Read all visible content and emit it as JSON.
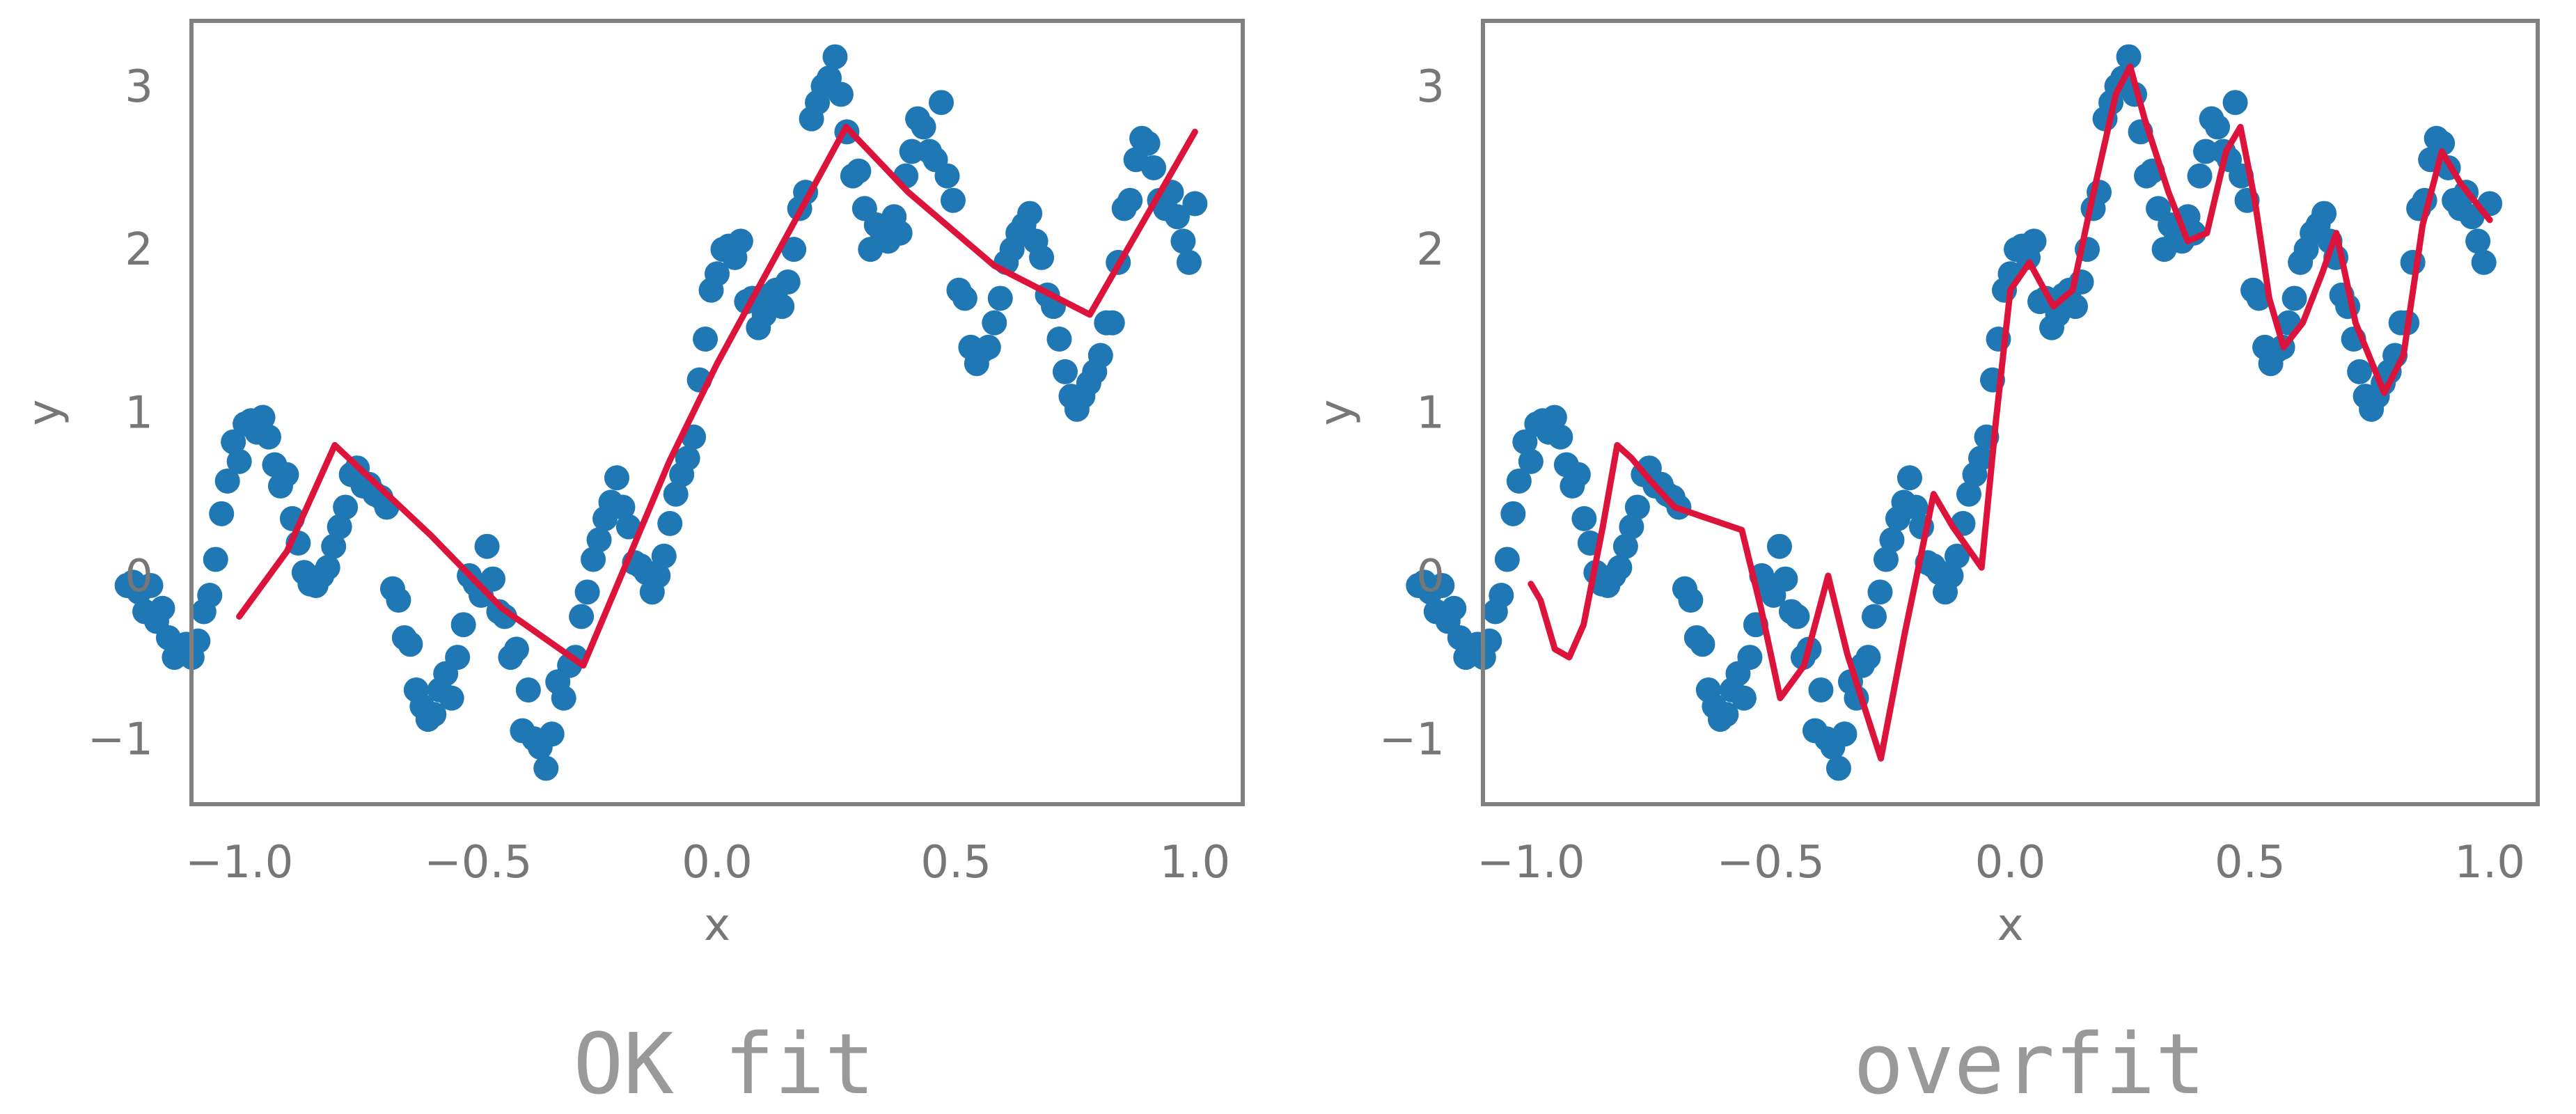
{
  "colors": {
    "points": "#1f77b4",
    "fit_line": "#dc143c",
    "frame": "#808080",
    "text": "#777777",
    "caption": "#999999"
  },
  "chart_data": [
    {
      "type": "scatter",
      "caption": "OK fit",
      "xlabel": "x",
      "ylabel": "y",
      "xlim": [
        -1.1,
        1.1
      ],
      "ylim": [
        -1.4,
        3.4
      ],
      "xticks": [
        -1.0,
        -0.5,
        0.0,
        0.5,
        1.0
      ],
      "xtick_labels": [
        "−1.0",
        "−0.5",
        "0.0",
        "0.5",
        "1.0"
      ],
      "yticks": [
        -1,
        0,
        1,
        2,
        3
      ],
      "ytick_labels": [
        "−1",
        "0",
        "1",
        "2",
        "3"
      ],
      "grid": false,
      "series": [
        {
          "kind": "points",
          "points": [
            [
              -1.0,
              -0.06
            ],
            [
              -0.99,
              -0.04
            ],
            [
              -0.98,
              -0.1
            ],
            [
              -0.97,
              -0.22
            ],
            [
              -0.96,
              -0.06
            ],
            [
              -0.95,
              -0.28
            ],
            [
              -0.94,
              -0.2
            ],
            [
              -0.93,
              -0.38
            ],
            [
              -0.92,
              -0.5
            ],
            [
              -0.91,
              -0.44
            ],
            [
              -0.9,
              -0.42
            ],
            [
              -0.89,
              -0.5
            ],
            [
              -0.88,
              -0.4
            ],
            [
              -0.87,
              -0.22
            ],
            [
              -0.86,
              -0.12
            ],
            [
              -0.85,
              0.1
            ],
            [
              -0.84,
              0.38
            ],
            [
              -0.83,
              0.58
            ],
            [
              -0.82,
              0.82
            ],
            [
              -0.81,
              0.7
            ],
            [
              -0.8,
              0.93
            ],
            [
              -0.79,
              0.95
            ],
            [
              -0.78,
              0.88
            ],
            [
              -0.77,
              0.97
            ],
            [
              -0.76,
              0.85
            ],
            [
              -0.75,
              0.68
            ],
            [
              -0.74,
              0.55
            ],
            [
              -0.73,
              0.62
            ],
            [
              -0.72,
              0.35
            ],
            [
              -0.71,
              0.2
            ],
            [
              -0.7,
              0.02
            ],
            [
              -0.69,
              -0.05
            ],
            [
              -0.68,
              -0.06
            ],
            [
              -0.67,
              0.0
            ],
            [
              -0.66,
              0.05
            ],
            [
              -0.65,
              0.18
            ],
            [
              -0.64,
              0.3
            ],
            [
              -0.63,
              0.42
            ],
            [
              -0.62,
              0.62
            ],
            [
              -0.61,
              0.66
            ],
            [
              -0.6,
              0.55
            ],
            [
              -0.59,
              0.56
            ],
            [
              -0.58,
              0.5
            ],
            [
              -0.57,
              0.48
            ],
            [
              -0.56,
              0.42
            ],
            [
              -0.55,
              -0.08
            ],
            [
              -0.54,
              -0.15
            ],
            [
              -0.53,
              -0.38
            ],
            [
              -0.52,
              -0.42
            ],
            [
              -0.51,
              -0.7
            ],
            [
              -0.5,
              -0.8
            ],
            [
              -0.49,
              -0.88
            ],
            [
              -0.48,
              -0.85
            ],
            [
              -0.47,
              -0.7
            ],
            [
              -0.46,
              -0.6
            ],
            [
              -0.45,
              -0.75
            ],
            [
              -0.44,
              -0.5
            ],
            [
              -0.43,
              -0.3
            ],
            [
              -0.42,
              0.0
            ],
            [
              -0.41,
              -0.05
            ],
            [
              -0.4,
              -0.12
            ],
            [
              -0.39,
              0.18
            ],
            [
              -0.38,
              -0.02
            ],
            [
              -0.37,
              -0.22
            ],
            [
              -0.36,
              -0.25
            ],
            [
              -0.35,
              -0.5
            ],
            [
              -0.34,
              -0.45
            ],
            [
              -0.33,
              -0.95
            ],
            [
              -0.32,
              -0.7
            ],
            [
              -0.31,
              -1.0
            ],
            [
              -0.3,
              -1.05
            ],
            [
              -0.29,
              -1.18
            ],
            [
              -0.28,
              -0.97
            ],
            [
              -0.27,
              -0.65
            ],
            [
              -0.26,
              -0.75
            ],
            [
              -0.25,
              -0.55
            ],
            [
              -0.24,
              -0.5
            ],
            [
              -0.23,
              -0.25
            ],
            [
              -0.22,
              -0.1
            ],
            [
              -0.21,
              0.1
            ],
            [
              -0.2,
              0.22
            ],
            [
              -0.19,
              0.35
            ],
            [
              -0.18,
              0.45
            ],
            [
              -0.17,
              0.6
            ],
            [
              -0.16,
              0.42
            ],
            [
              -0.15,
              0.3
            ],
            [
              -0.14,
              0.08
            ],
            [
              -0.13,
              0.06
            ],
            [
              -0.12,
              0.02
            ],
            [
              -0.11,
              -0.1
            ],
            [
              -0.1,
              0.0
            ],
            [
              -0.09,
              0.12
            ],
            [
              -0.08,
              0.32
            ],
            [
              -0.07,
              0.5
            ],
            [
              -0.06,
              0.62
            ],
            [
              -0.05,
              0.72
            ],
            [
              -0.04,
              0.85
            ],
            [
              -0.03,
              1.2
            ],
            [
              -0.02,
              1.45
            ],
            [
              -0.01,
              1.75
            ],
            [
              0.0,
              1.85
            ],
            [
              0.01,
              2.0
            ],
            [
              0.02,
              2.02
            ],
            [
              0.03,
              1.95
            ],
            [
              0.04,
              2.05
            ],
            [
              0.05,
              1.68
            ],
            [
              0.06,
              1.7
            ],
            [
              0.07,
              1.52
            ],
            [
              0.08,
              1.6
            ],
            [
              0.09,
              1.72
            ],
            [
              0.1,
              1.75
            ],
            [
              0.11,
              1.65
            ],
            [
              0.12,
              1.8
            ],
            [
              0.13,
              2.0
            ],
            [
              0.14,
              2.25
            ],
            [
              0.15,
              2.35
            ],
            [
              0.16,
              2.8
            ],
            [
              0.17,
              2.9
            ],
            [
              0.18,
              3.0
            ],
            [
              0.19,
              3.05
            ],
            [
              0.2,
              3.18
            ],
            [
              0.21,
              2.95
            ],
            [
              0.22,
              2.72
            ],
            [
              0.23,
              2.45
            ],
            [
              0.24,
              2.48
            ],
            [
              0.25,
              2.25
            ],
            [
              0.26,
              2.0
            ],
            [
              0.27,
              2.15
            ],
            [
              0.28,
              2.1
            ],
            [
              0.29,
              2.05
            ],
            [
              0.3,
              2.2
            ],
            [
              0.31,
              2.1
            ],
            [
              0.32,
              2.45
            ],
            [
              0.33,
              2.6
            ],
            [
              0.34,
              2.8
            ],
            [
              0.35,
              2.75
            ],
            [
              0.36,
              2.6
            ],
            [
              0.37,
              2.55
            ],
            [
              0.38,
              2.9
            ],
            [
              0.39,
              2.45
            ],
            [
              0.4,
              2.3
            ],
            [
              0.41,
              1.75
            ],
            [
              0.42,
              1.7
            ],
            [
              0.43,
              1.4
            ],
            [
              0.44,
              1.3
            ],
            [
              0.45,
              1.38
            ],
            [
              0.46,
              1.4
            ],
            [
              0.47,
              1.55
            ],
            [
              0.48,
              1.7
            ],
            [
              0.49,
              1.92
            ],
            [
              0.5,
              2.0
            ],
            [
              0.51,
              2.1
            ],
            [
              0.52,
              2.15
            ],
            [
              0.53,
              2.22
            ],
            [
              0.54,
              2.05
            ],
            [
              0.55,
              1.95
            ],
            [
              0.56,
              1.72
            ],
            [
              0.57,
              1.65
            ],
            [
              0.58,
              1.45
            ],
            [
              0.59,
              1.25
            ],
            [
              0.6,
              1.1
            ],
            [
              0.61,
              1.02
            ],
            [
              0.62,
              1.1
            ],
            [
              0.63,
              1.18
            ],
            [
              0.64,
              1.25
            ],
            [
              0.65,
              1.35
            ],
            [
              0.66,
              1.55
            ],
            [
              0.67,
              1.55
            ],
            [
              0.68,
              1.92
            ],
            [
              0.69,
              2.25
            ],
            [
              0.7,
              2.3
            ],
            [
              0.71,
              2.55
            ],
            [
              0.72,
              2.68
            ],
            [
              0.73,
              2.65
            ],
            [
              0.74,
              2.5
            ],
            [
              0.75,
              2.3
            ],
            [
              0.76,
              2.25
            ],
            [
              0.77,
              2.35
            ],
            [
              0.78,
              2.2
            ],
            [
              0.79,
              2.05
            ],
            [
              0.8,
              1.92
            ],
            [
              0.81,
              2.28
            ]
          ],
          "x_transform": {
            "from": [
              -0.81,
              0.81
            ],
            "to": [
              -1.0,
              1.0
            ]
          }
        },
        {
          "kind": "line",
          "points": [
            [
              -1.0,
              -0.25
            ],
            [
              -0.9,
              0.15
            ],
            [
              -0.8,
              0.8
            ],
            [
              -0.6,
              0.25
            ],
            [
              -0.45,
              -0.2
            ],
            [
              -0.28,
              -0.55
            ],
            [
              -0.1,
              0.7
            ],
            [
              0.0,
              1.3
            ],
            [
              0.27,
              2.75
            ],
            [
              0.4,
              2.35
            ],
            [
              0.58,
              1.9
            ],
            [
              0.78,
              1.6
            ],
            [
              1.0,
              2.72
            ]
          ]
        }
      ]
    },
    {
      "type": "scatter",
      "caption": "overfit",
      "xlabel": "x",
      "ylabel": "y",
      "xlim": [
        -1.1,
        1.1
      ],
      "ylim": [
        -1.4,
        3.4
      ],
      "xticks": [
        -1.0,
        -0.5,
        0.0,
        0.5,
        1.0
      ],
      "xtick_labels": [
        "−1.0",
        "−0.5",
        "0.0",
        "0.5",
        "1.0"
      ],
      "yticks": [
        -1,
        0,
        1,
        2,
        3
      ],
      "ytick_labels": [
        "−1",
        "0",
        "1",
        "2",
        "3"
      ],
      "grid": false,
      "series": [
        {
          "kind": "points",
          "same_as_panel": 0
        },
        {
          "kind": "line",
          "points": [
            [
              -1.0,
              -0.05
            ],
            [
              -0.98,
              -0.15
            ],
            [
              -0.95,
              -0.45
            ],
            [
              -0.92,
              -0.5
            ],
            [
              -0.89,
              -0.3
            ],
            [
              -0.85,
              0.3
            ],
            [
              -0.82,
              0.8
            ],
            [
              -0.79,
              0.72
            ],
            [
              -0.75,
              0.58
            ],
            [
              -0.7,
              0.42
            ],
            [
              -0.63,
              0.35
            ],
            [
              -0.56,
              0.28
            ],
            [
              -0.52,
              -0.2
            ],
            [
              -0.48,
              -0.75
            ],
            [
              -0.43,
              -0.55
            ],
            [
              -0.38,
              0.0
            ],
            [
              -0.34,
              -0.48
            ],
            [
              -0.27,
              -1.12
            ],
            [
              -0.22,
              -0.35
            ],
            [
              -0.16,
              0.5
            ],
            [
              -0.12,
              0.3
            ],
            [
              -0.06,
              0.05
            ],
            [
              -0.03,
              0.95
            ],
            [
              0.0,
              1.75
            ],
            [
              0.04,
              1.92
            ],
            [
              0.09,
              1.65
            ],
            [
              0.13,
              1.75
            ],
            [
              0.17,
              2.3
            ],
            [
              0.22,
              2.95
            ],
            [
              0.25,
              3.12
            ],
            [
              0.28,
              2.8
            ],
            [
              0.33,
              2.35
            ],
            [
              0.37,
              2.05
            ],
            [
              0.41,
              2.1
            ],
            [
              0.45,
              2.6
            ],
            [
              0.48,
              2.75
            ],
            [
              0.51,
              2.3
            ],
            [
              0.54,
              1.7
            ],
            [
              0.57,
              1.4
            ],
            [
              0.61,
              1.55
            ],
            [
              0.65,
              1.85
            ],
            [
              0.68,
              2.1
            ],
            [
              0.72,
              1.55
            ],
            [
              0.78,
              1.12
            ],
            [
              0.82,
              1.35
            ],
            [
              0.86,
              2.15
            ],
            [
              0.9,
              2.6
            ],
            [
              0.94,
              2.4
            ],
            [
              1.0,
              2.18
            ]
          ]
        }
      ]
    }
  ]
}
